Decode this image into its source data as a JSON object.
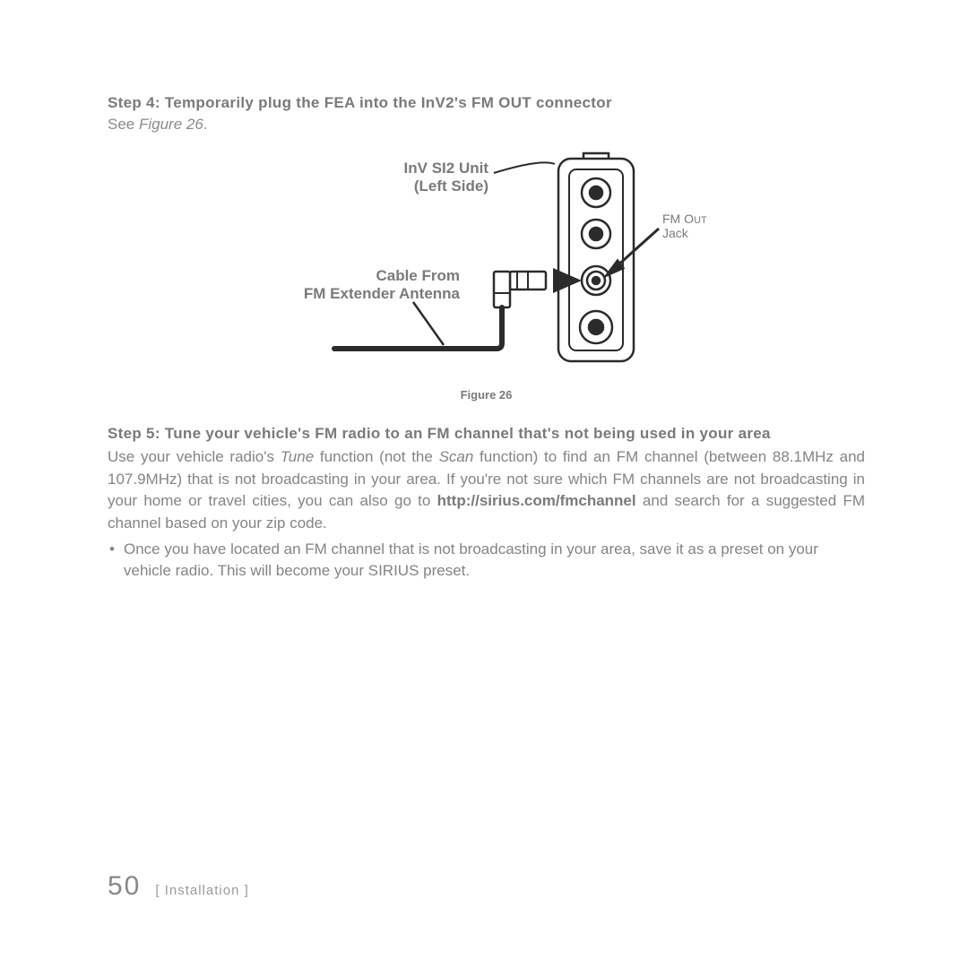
{
  "step4": {
    "heading": "Step 4: Temporarily plug the FEA into the InV2's FM OUT connector",
    "see_prefix": "See ",
    "see_figref": "Figure 26",
    "see_suffix": "."
  },
  "diagram": {
    "label_unit_line1": "InV SI2 Unit",
    "label_unit_line2": "(Left Side)",
    "label_cable_line1": "Cable From",
    "label_cable_line2": "FM Extender Antenna",
    "label_fmout_line1": "FM O",
    "label_fmout_line1_sc": "UT",
    "label_fmout_line2": "Jack",
    "caption": "Figure 26",
    "colors": {
      "stroke": "#2b2b2b",
      "text": "#7a7a7a"
    }
  },
  "step5": {
    "heading": "Step 5: Tune your vehicle's FM radio to an FM channel that's not being used in your area",
    "para_parts": [
      {
        "t": "Use your vehicle radio's "
      },
      {
        "t": "Tune",
        "ital": true
      },
      {
        "t": " function (not the "
      },
      {
        "t": "Scan",
        "ital": true
      },
      {
        "t": " function) to find an FM channel (between 88.1MHz and 107.9MHz) that is not broadcasting in your area. If you're not sure which FM channels are not broadcasting in your home or travel cities, you can also go to "
      },
      {
        "t": "http://sirius.com/fmchannel",
        "bold": true
      },
      {
        "t": " and search for a suggested FM channel based on your zip code."
      }
    ],
    "bullet": "Once you have located an FM channel that is not broadcasting in your area, save it as a preset on your vehicle radio. This will become your SIRIUS preset."
  },
  "footer": {
    "page_number": "50",
    "section": "[ Installation ]"
  }
}
